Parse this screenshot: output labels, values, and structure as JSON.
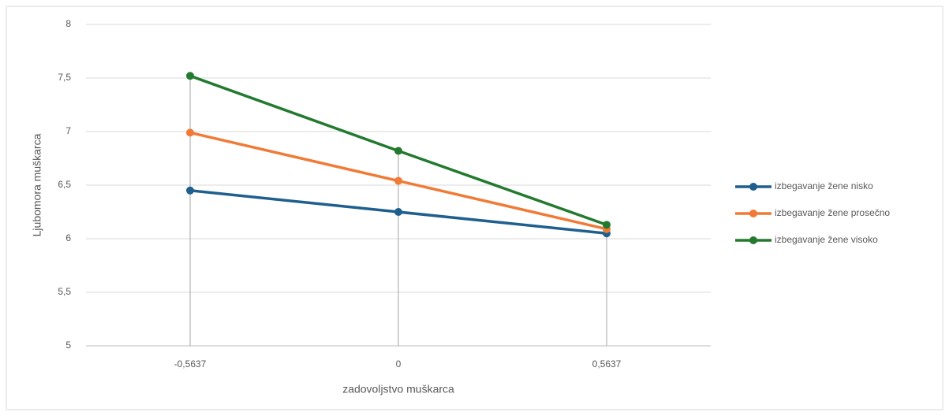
{
  "chart_data": {
    "type": "line",
    "x_label": "zadovoljstvo muškarca",
    "y_label": "Ljubomora muškarca",
    "categories": [
      "-0,5637",
      "0",
      "0,5637"
    ],
    "series": [
      {
        "name": "izbegavanje žene nisko",
        "color": "#1f5f8e",
        "values": [
          6.45,
          6.25,
          6.05
        ]
      },
      {
        "name": "izbegavanje žene prosečno",
        "color": "#f07a36",
        "values": [
          6.99,
          6.54,
          6.09
        ]
      },
      {
        "name": "izbegavanje žene visoko",
        "color": "#237a2f",
        "values": [
          7.52,
          6.82,
          6.13
        ]
      }
    ],
    "ylim": [
      5,
      8
    ],
    "yticks": [
      5,
      {
        "value": 5.5,
        "label": "5,5"
      },
      6,
      {
        "value": 6.5,
        "label": "6,5"
      },
      7,
      {
        "value": 7.5,
        "label": "7,5"
      },
      8
    ],
    "grid": true,
    "drop_lines": true,
    "legend": "right"
  }
}
